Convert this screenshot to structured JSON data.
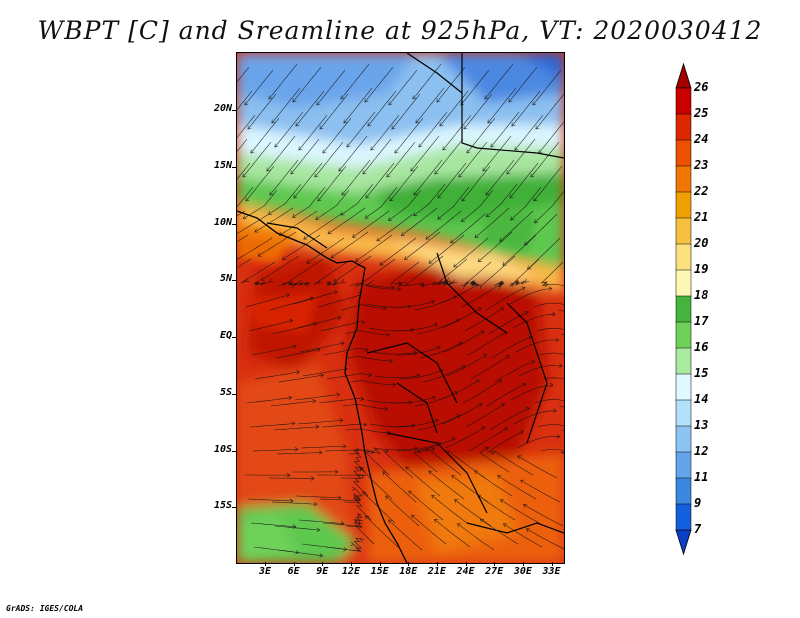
{
  "title": "WBPT [C] and Sreamline at 925hPa, VT: 2020030412",
  "footer": "GrADS: IGES/COLA",
  "lat_ticks": [
    {
      "label": "20N",
      "value": 20
    },
    {
      "label": "15N",
      "value": 15
    },
    {
      "label": "10N",
      "value": 10
    },
    {
      "label": "5N",
      "value": 5
    },
    {
      "label": "EQ",
      "value": 0
    },
    {
      "label": "5S",
      "value": -5
    },
    {
      "label": "10S",
      "value": -10
    },
    {
      "label": "15S",
      "value": -15
    }
  ],
  "lon_ticks": [
    {
      "label": "3E",
      "value": 3
    },
    {
      "label": "6E",
      "value": 6
    },
    {
      "label": "9E",
      "value": 9
    },
    {
      "label": "12E",
      "value": 12
    },
    {
      "label": "15E",
      "value": 15
    },
    {
      "label": "18E",
      "value": 18
    },
    {
      "label": "21E",
      "value": 21
    },
    {
      "label": "24E",
      "value": 24
    },
    {
      "label": "27E",
      "value": 27
    },
    {
      "label": "30E",
      "value": 30
    },
    {
      "label": "33E",
      "value": 33
    }
  ],
  "colorbar": {
    "labels": [
      "26",
      "25",
      "24",
      "23",
      "22",
      "21",
      "20",
      "19",
      "18",
      "17",
      "16",
      "15",
      "14",
      "13",
      "12",
      "11",
      "9",
      "7"
    ],
    "colors": [
      "#a50000",
      "#c80000",
      "#dc2800",
      "#ec5000",
      "#f07800",
      "#f0a000",
      "#f8c040",
      "#fce07c",
      "#fcf8b4",
      "#46b43c",
      "#6ed25a",
      "#aaeaa0",
      "#e0f8ff",
      "#b4e0fc",
      "#8cc4f4",
      "#64a4ec",
      "#3c88e0",
      "#1460dc",
      "#0a40c8"
    ]
  }
}
